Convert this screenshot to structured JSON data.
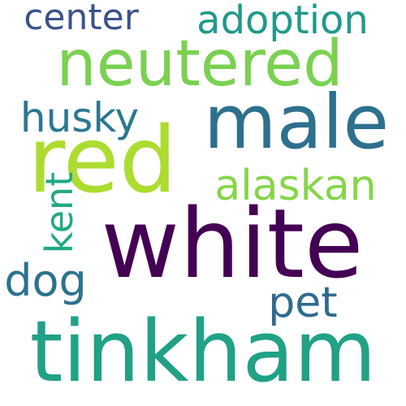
{
  "words": [
    {
      "text": "white",
      "color": "#440154"
    },
    {
      "text": "tinkham",
      "color": "#21a185"
    },
    {
      "text": "red",
      "color": "#addc30"
    },
    {
      "text": "male",
      "color": "#2d708e"
    },
    {
      "text": "neutered",
      "color": "#7ad151"
    },
    {
      "text": "adoption",
      "color": "#1f9a8a"
    },
    {
      "text": "center",
      "color": "#3b528b"
    },
    {
      "text": "husky",
      "color": "#2a788e"
    },
    {
      "text": "alaskan",
      "color": "#86d549"
    },
    {
      "text": "kent",
      "color": "#22a884"
    },
    {
      "text": "dog",
      "color": "#2c728e"
    },
    {
      "text": "pet",
      "color": "#2f6b8e"
    }
  ]
}
